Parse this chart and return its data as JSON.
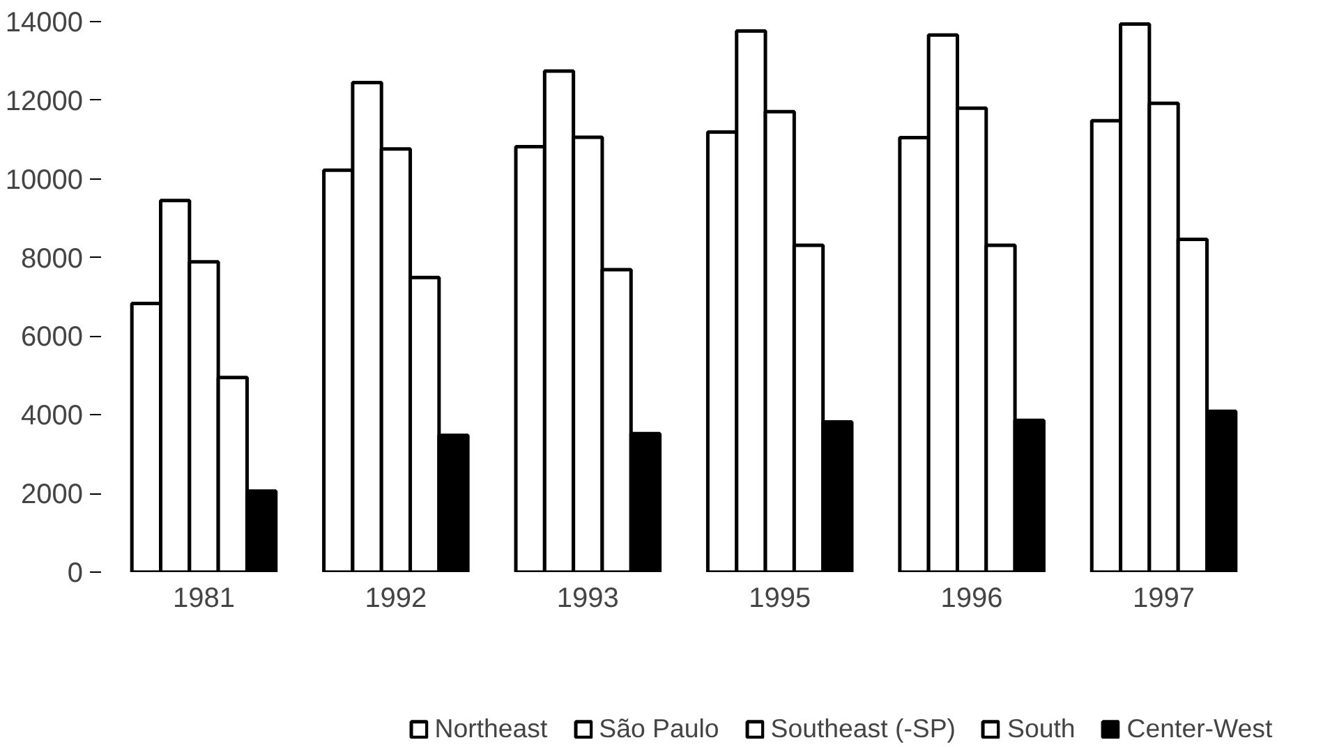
{
  "chart_data": {
    "type": "bar",
    "categories": [
      "1981",
      "1992",
      "1993",
      "1995",
      "1996",
      "1997"
    ],
    "series": [
      {
        "name": "Northeast",
        "color": "#ffffff",
        "values": [
          6830,
          10220,
          10820,
          11190,
          11050,
          11480
        ]
      },
      {
        "name": "São Paulo",
        "color": "#ffffff",
        "values": [
          9450,
          12450,
          12740,
          13760,
          13660,
          13940
        ]
      },
      {
        "name": "Southeast (-SP)",
        "color": "#ffffff",
        "values": [
          7890,
          10760,
          11060,
          11710,
          11800,
          11920
        ]
      },
      {
        "name": "South",
        "color": "#ffffff",
        "values": [
          4950,
          7490,
          7690,
          8310,
          8310,
          8460
        ]
      },
      {
        "name": "Center-West",
        "color": "#000000",
        "values": [
          2060,
          3480,
          3520,
          3820,
          3860,
          4090
        ]
      }
    ],
    "ylim": [
      0,
      14000
    ],
    "yticks": [
      0,
      2000,
      4000,
      6000,
      8000,
      10000,
      12000,
      14000
    ],
    "grid": false,
    "legend": "bottom"
  }
}
